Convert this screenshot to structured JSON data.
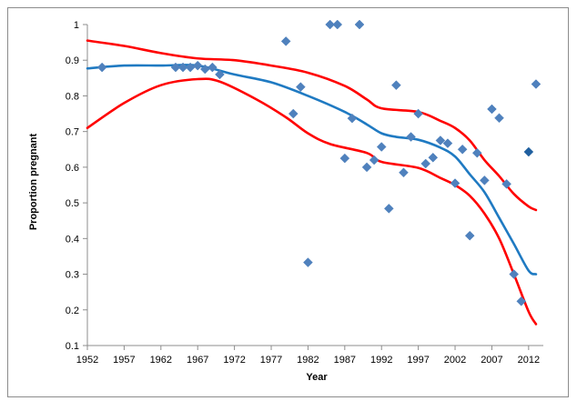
{
  "chart_data": {
    "type": "scatter",
    "title": "",
    "xlabel": "Year",
    "ylabel": "Proportion pregnant",
    "xlim": [
      1952,
      2014
    ],
    "ylim": [
      0.1,
      1.0
    ],
    "x_ticks": [
      1952,
      1957,
      1962,
      1967,
      1972,
      1977,
      1982,
      1987,
      1992,
      1997,
      2002,
      2007,
      2012
    ],
    "y_ticks": [
      0.1,
      0.2,
      0.3,
      0.4,
      0.5,
      0.6,
      0.7,
      0.8,
      0.9,
      1.0
    ],
    "y_tick_labels": [
      "0.1",
      "0.2",
      "0.3",
      "0.4",
      "0.5",
      "0.6",
      "0.7",
      "0.8",
      "0.9",
      "1"
    ],
    "grid": false,
    "legend": "none",
    "colors": {
      "points": "#4f81bd",
      "highlight_point": "#1f5f9f",
      "fit": "#1f7ac2",
      "ci": "#ff0000",
      "axis": "#8c8c8c"
    },
    "series": [
      {
        "type": "scatter",
        "points": [
          [
            1954,
            0.88
          ],
          [
            1964,
            0.88
          ],
          [
            1965,
            0.88
          ],
          [
            1966,
            0.88
          ],
          [
            1967,
            0.885
          ],
          [
            1968,
            0.875
          ],
          [
            1969,
            0.88
          ],
          [
            1970,
            0.86
          ],
          [
            1979,
            0.953
          ],
          [
            1980,
            0.75
          ],
          [
            1981,
            0.825
          ],
          [
            1982,
            0.333
          ],
          [
            1985,
            1.0
          ],
          [
            1986,
            1.0
          ],
          [
            1987,
            0.625
          ],
          [
            1988,
            0.737
          ],
          [
            1989,
            1.0
          ],
          [
            1990,
            0.6
          ],
          [
            1991,
            0.62
          ],
          [
            1992,
            0.657
          ],
          [
            1993,
            0.484
          ],
          [
            1994,
            0.83
          ],
          [
            1995,
            0.585
          ],
          [
            1996,
            0.685
          ],
          [
            1997,
            0.75
          ],
          [
            1998,
            0.61
          ],
          [
            1999,
            0.627
          ],
          [
            2000,
            0.675
          ],
          [
            2001,
            0.667
          ],
          [
            2002,
            0.555
          ],
          [
            2003,
            0.65
          ],
          [
            2004,
            0.408
          ],
          [
            2005,
            0.64
          ],
          [
            2006,
            0.563
          ],
          [
            2007,
            0.763
          ],
          [
            2008,
            0.738
          ],
          [
            2009,
            0.553
          ],
          [
            2010,
            0.3
          ],
          [
            2011,
            0.224
          ],
          [
            2012,
            0.643
          ],
          [
            2013,
            0.833
          ]
        ]
      },
      {
        "type": "line",
        "role": "fit",
        "points": [
          [
            1952,
            0.877
          ],
          [
            1957,
            0.885
          ],
          [
            1962,
            0.885
          ],
          [
            1967,
            0.885
          ],
          [
            1972,
            0.86
          ],
          [
            1977,
            0.838
          ],
          [
            1982,
            0.8
          ],
          [
            1987,
            0.755
          ],
          [
            1990,
            0.72
          ],
          [
            1992,
            0.695
          ],
          [
            1994,
            0.685
          ],
          [
            1997,
            0.677
          ],
          [
            2000,
            0.655
          ],
          [
            2002,
            0.63
          ],
          [
            2004,
            0.58
          ],
          [
            2006,
            0.53
          ],
          [
            2008,
            0.458
          ],
          [
            2010,
            0.385
          ],
          [
            2012,
            0.31
          ],
          [
            2013,
            0.3
          ]
        ]
      },
      {
        "type": "line",
        "role": "upper_ci",
        "points": [
          [
            1952,
            0.955
          ],
          [
            1957,
            0.94
          ],
          [
            1962,
            0.92
          ],
          [
            1967,
            0.905
          ],
          [
            1972,
            0.9
          ],
          [
            1977,
            0.885
          ],
          [
            1982,
            0.865
          ],
          [
            1987,
            0.828
          ],
          [
            1990,
            0.79
          ],
          [
            1992,
            0.765
          ],
          [
            1997,
            0.755
          ],
          [
            2000,
            0.73
          ],
          [
            2002,
            0.71
          ],
          [
            2004,
            0.675
          ],
          [
            2006,
            0.62
          ],
          [
            2008,
            0.575
          ],
          [
            2010,
            0.525
          ],
          [
            2012,
            0.49
          ],
          [
            2013,
            0.48
          ]
        ]
      },
      {
        "type": "line",
        "role": "lower_ci",
        "points": [
          [
            1952,
            0.71
          ],
          [
            1957,
            0.78
          ],
          [
            1962,
            0.83
          ],
          [
            1967,
            0.847
          ],
          [
            1970,
            0.84
          ],
          [
            1975,
            0.79
          ],
          [
            1979,
            0.74
          ],
          [
            1982,
            0.695
          ],
          [
            1985,
            0.665
          ],
          [
            1990,
            0.64
          ],
          [
            1992,
            0.615
          ],
          [
            1997,
            0.598
          ],
          [
            2000,
            0.57
          ],
          [
            2002,
            0.55
          ],
          [
            2004,
            0.52
          ],
          [
            2006,
            0.47
          ],
          [
            2008,
            0.4
          ],
          [
            2010,
            0.3
          ],
          [
            2012,
            0.195
          ],
          [
            2013,
            0.16
          ]
        ]
      }
    ],
    "highlighted_point": [
      2012,
      0.643
    ]
  }
}
